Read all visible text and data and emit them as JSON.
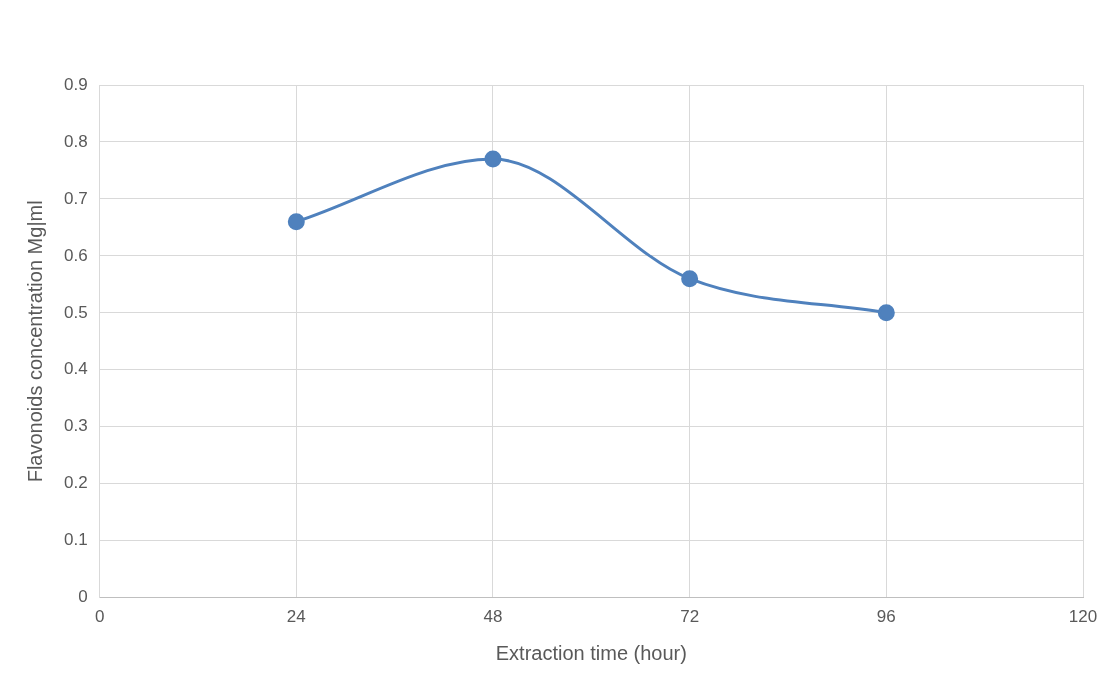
{
  "chart_data": {
    "type": "line",
    "xlabel": "Extraction time (hour)",
    "ylabel": "Flavonoids concentration Mg|ml",
    "x": [
      24,
      48,
      72,
      96
    ],
    "series": [
      {
        "color": "#4f81bd",
        "values": [
          0.66,
          0.77,
          0.56,
          0.5
        ]
      }
    ],
    "xlim": [
      0,
      120
    ],
    "xticks": [
      0,
      24,
      48,
      72,
      96,
      120
    ],
    "ylim": [
      0,
      0.9
    ],
    "yticks": [
      0,
      0.1,
      0.2,
      0.3,
      0.4,
      0.5,
      0.6,
      0.7,
      0.8,
      0.9
    ],
    "grid": true,
    "legend": false,
    "marker": "circle",
    "line_style": "solid"
  }
}
